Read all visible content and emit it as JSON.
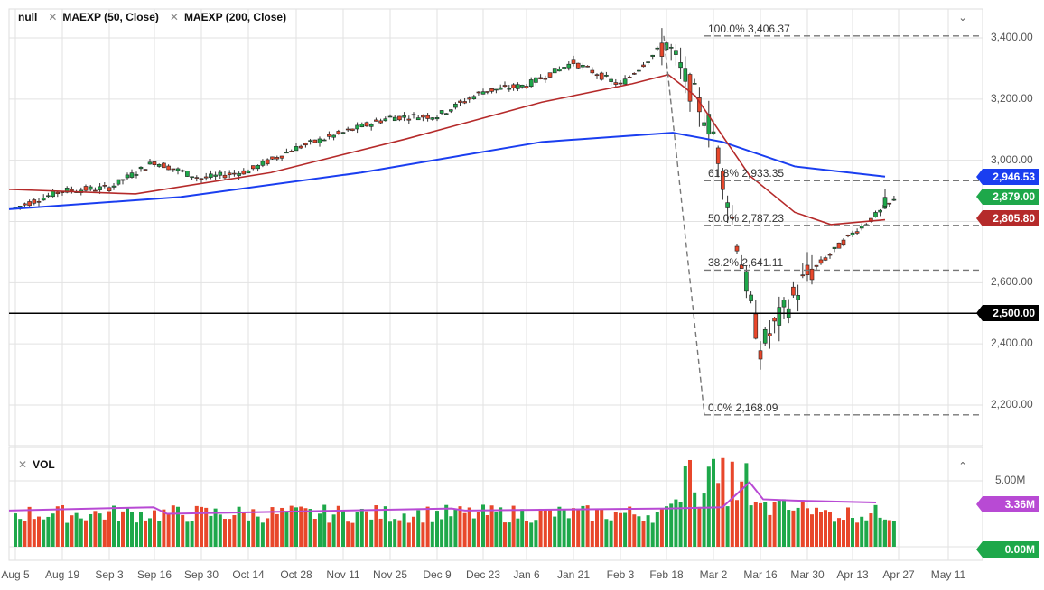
{
  "legend": {
    "series_label": "null",
    "ma50_label": "MAEXP (50, Close)",
    "ma200_label": "MAEXP (200, Close)",
    "volume_label": "VOL",
    "close_icon": "close-x-icon",
    "collapse_icon": "chevron-down-icon",
    "expand_icon": "chevron-up-icon"
  },
  "colors": {
    "up": "#1ea84a",
    "down": "#e8472b",
    "ma50": "#b52a2a",
    "ma200": "#1a3ef0",
    "vol_ma": "#b84ad4",
    "grid": "#e2e2e2",
    "support": "#000000",
    "fib": "#777777"
  },
  "price_axis": {
    "ticks": [
      {
        "label": "3,400.00",
        "value": 3400
      },
      {
        "label": "3,200.00",
        "value": 3200
      },
      {
        "label": "3,000.00",
        "value": 3000
      },
      {
        "label": "2,600.00",
        "value": 2600
      },
      {
        "label": "2,400.00",
        "value": 2400
      },
      {
        "label": "2,200.00",
        "value": 2200
      }
    ],
    "tags": [
      {
        "label": "2,946.53",
        "value": 2946.53,
        "color": "#1a3ef0",
        "name": "ma200-value-tag"
      },
      {
        "label": "2,879.00",
        "value": 2879.0,
        "color": "#1ea84a",
        "name": "last-price-tag"
      },
      {
        "label": "2,805.80",
        "value": 2805.8,
        "color": "#b52a2a",
        "name": "ma50-value-tag"
      },
      {
        "label": "2,500.00",
        "value": 2500.0,
        "color": "#000000",
        "name": "support-level-tag"
      }
    ]
  },
  "volume_axis": {
    "ticks": [
      {
        "label": "5.00M",
        "value": 5.0
      }
    ],
    "tags": [
      {
        "label": "3.36M",
        "value": 3.36,
        "color": "#b84ad4",
        "name": "volume-ma-tag"
      },
      {
        "label": "0.00M",
        "value": 0.0,
        "color": "#1ea84a",
        "name": "volume-zero-tag"
      }
    ]
  },
  "fibonacci": [
    {
      "label": "100.0% 3,406.37",
      "value": 3406.37
    },
    {
      "label": "61.8% 2,933.35",
      "value": 2933.35
    },
    {
      "label": "50.0% 2,787.23",
      "value": 2787.23
    },
    {
      "label": "38.2% 2,641.11",
      "value": 2641.11
    },
    {
      "label": "0.0% 2,168.09",
      "value": 2168.09
    }
  ],
  "chart_data": {
    "type": "candlestick",
    "title": "",
    "x_ticks": [
      "Aug 5",
      "Aug 19",
      "Sep 3",
      "Sep 16",
      "Sep 30",
      "Oct 14",
      "Oct 28",
      "Nov 11",
      "Nov 25",
      "Dec 9",
      "Dec 23",
      "Jan 6",
      "Jan 21",
      "Feb 3",
      "Feb 18",
      "Mar 2",
      "Mar 16",
      "Mar 30",
      "Apr 13",
      "Apr 27",
      "May 11"
    ],
    "ylim": [
      2130,
      3440
    ],
    "support_line": 2500,
    "approx_close_path": [
      {
        "date": "Aug 5",
        "close": 2845
      },
      {
        "date": "Aug 19",
        "close": 2900
      },
      {
        "date": "Sep 3",
        "close": 2910
      },
      {
        "date": "Sep 16",
        "close": 2995
      },
      {
        "date": "Sep 30",
        "close": 2940
      },
      {
        "date": "Oct 14",
        "close": 2965
      },
      {
        "date": "Oct 28",
        "close": 3040
      },
      {
        "date": "Nov 11",
        "close": 3090
      },
      {
        "date": "Nov 25",
        "close": 3140
      },
      {
        "date": "Dec 9",
        "close": 3145
      },
      {
        "date": "Dec 23",
        "close": 3225
      },
      {
        "date": "Jan 6",
        "close": 3245
      },
      {
        "date": "Jan 21",
        "close": 3320
      },
      {
        "date": "Feb 3",
        "close": 3245
      },
      {
        "date": "Feb 18",
        "close": 3385
      },
      {
        "date": "Mar 2",
        "close": 3090
      },
      {
        "date": "Mar 16",
        "close": 2385
      },
      {
        "date": "Mar 30",
        "close": 2625
      },
      {
        "date": "Apr 13",
        "close": 2760
      },
      {
        "date": "Apr 27",
        "close": 2879
      }
    ],
    "series": [
      {
        "name": "MAEXP (50, Close)",
        "last": 2805.8
      },
      {
        "name": "MAEXP (200, Close)",
        "last": 2946.53
      }
    ],
    "volume": {
      "ylabel": "VOL",
      "ma_last": 3.36,
      "peak_date": "Mar 16",
      "peak_approx": 6.9
    }
  }
}
